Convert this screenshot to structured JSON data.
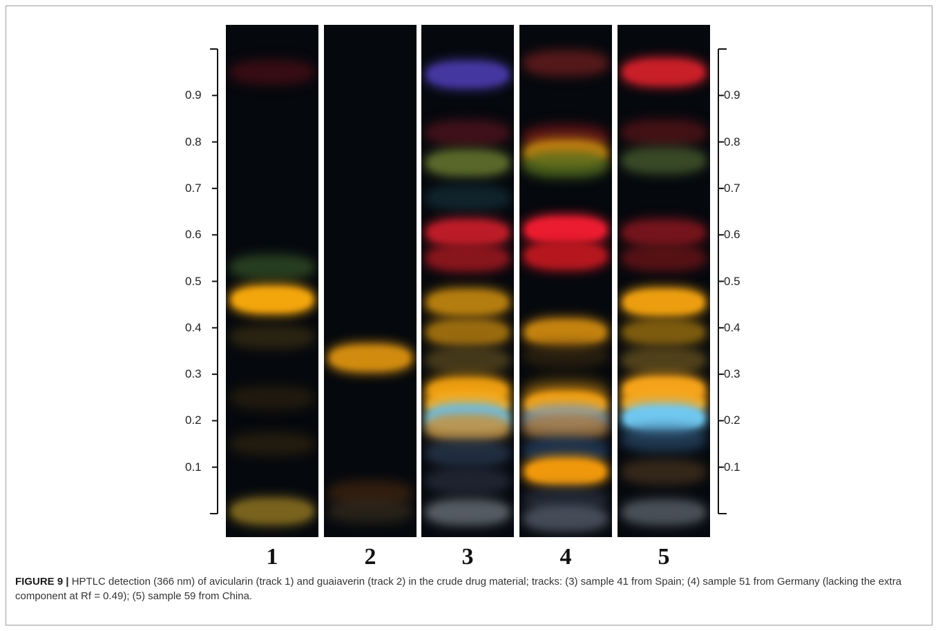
{
  "figure": {
    "y_axis_ticks": [
      "0.1",
      "0.2",
      "0.3",
      "0.4",
      "0.5",
      "0.6",
      "0.7",
      "0.8",
      "0.9"
    ],
    "tracks": [
      {
        "label": "1",
        "bands": [
          {
            "rf": 0.95,
            "color": "#5a1018",
            "intensity": 0.35
          },
          {
            "rf": 0.53,
            "color": "#3a5a2a",
            "intensity": 0.45
          },
          {
            "rf": 0.46,
            "color": "#f3a50c",
            "intensity": 1.0
          },
          {
            "rf": 0.38,
            "color": "#4a3a15",
            "intensity": 0.3
          },
          {
            "rf": 0.25,
            "color": "#3a2a10",
            "intensity": 0.25
          },
          {
            "rf": 0.15,
            "color": "#3a2a10",
            "intensity": 0.3
          },
          {
            "rf": 0.005,
            "color": "#8a7020",
            "intensity": 0.8
          }
        ]
      },
      {
        "label": "2",
        "bands": [
          {
            "rf": 0.335,
            "color": "#d89010",
            "intensity": 0.95
          },
          {
            "rf": 0.045,
            "color": "#4a2a10",
            "intensity": 0.4
          },
          {
            "rf": 0.005,
            "color": "#3a3020",
            "intensity": 0.4
          }
        ]
      },
      {
        "label": "3",
        "bands": [
          {
            "rf": 0.945,
            "color": "#4a3aaa",
            "intensity": 0.9
          },
          {
            "rf": 0.82,
            "color": "#5a1520",
            "intensity": 0.5
          },
          {
            "rf": 0.755,
            "color": "#6a7a30",
            "intensity": 0.75
          },
          {
            "rf": 0.68,
            "color": "#15303a",
            "intensity": 0.5
          },
          {
            "rf": 0.605,
            "color": "#c81e2a",
            "intensity": 0.9
          },
          {
            "rf": 0.55,
            "color": "#a01820",
            "intensity": 0.75
          },
          {
            "rf": 0.455,
            "color": "#c88a10",
            "intensity": 0.85
          },
          {
            "rf": 0.39,
            "color": "#b07a10",
            "intensity": 0.8
          },
          {
            "rf": 0.33,
            "color": "#5a4a20",
            "intensity": 0.6
          },
          {
            "rf": 0.265,
            "color": "#f0a010",
            "intensity": 0.95
          },
          {
            "rf": 0.235,
            "color": "#f7a81a",
            "intensity": 1.0
          },
          {
            "rf": 0.205,
            "color": "#66c0ec",
            "intensity": 1.0
          },
          {
            "rf": 0.185,
            "color": "#c8903a",
            "intensity": 0.75
          },
          {
            "rf": 0.13,
            "color": "#2a3a50",
            "intensity": 0.6
          },
          {
            "rf": 0.07,
            "color": "#2a3040",
            "intensity": 0.5
          },
          {
            "rf": 0.003,
            "color": "#707880",
            "intensity": 0.6
          }
        ]
      },
      {
        "label": "4",
        "bands": [
          {
            "rf": 0.97,
            "color": "#7a2020",
            "intensity": 0.5
          },
          {
            "rf": 0.81,
            "color": "#6a1518",
            "intensity": 0.6
          },
          {
            "rf": 0.775,
            "color": "#d08a10",
            "intensity": 0.85
          },
          {
            "rf": 0.75,
            "color": "#4a6a20",
            "intensity": 0.6
          },
          {
            "rf": 0.61,
            "color": "#ec1c30",
            "intensity": 1.0
          },
          {
            "rf": 0.555,
            "color": "#c01820",
            "intensity": 0.9
          },
          {
            "rf": 0.39,
            "color": "#d08a10",
            "intensity": 0.9
          },
          {
            "rf": 0.34,
            "color": "#3a2a10",
            "intensity": 0.4
          },
          {
            "rf": 0.265,
            "color": "#5a4010",
            "intensity": 0.6
          },
          {
            "rf": 0.235,
            "color": "#f4a010",
            "intensity": 1.0
          },
          {
            "rf": 0.205,
            "color": "#7aa0c0",
            "intensity": 0.7
          },
          {
            "rf": 0.185,
            "color": "#b07a3a",
            "intensity": 0.6
          },
          {
            "rf": 0.135,
            "color": "#203a5a",
            "intensity": 0.7
          },
          {
            "rf": 0.09,
            "color": "#f0980c",
            "intensity": 1.0
          },
          {
            "rf": 0.03,
            "color": "#2a3240",
            "intensity": 0.5
          },
          {
            "rf": -0.01,
            "color": "#5a6270",
            "intensity": 0.6
          }
        ]
      },
      {
        "label": "5",
        "bands": [
          {
            "rf": 0.95,
            "color": "#d0202a",
            "intensity": 0.95
          },
          {
            "rf": 0.82,
            "color": "#5a1518",
            "intensity": 0.55
          },
          {
            "rf": 0.76,
            "color": "#4a6030",
            "intensity": 0.6
          },
          {
            "rf": 0.605,
            "color": "#901820",
            "intensity": 0.7
          },
          {
            "rf": 0.55,
            "color": "#701518",
            "intensity": 0.6
          },
          {
            "rf": 0.455,
            "color": "#ec9e10",
            "intensity": 1.0
          },
          {
            "rf": 0.39,
            "color": "#9a7010",
            "intensity": 0.7
          },
          {
            "rf": 0.33,
            "color": "#6a5520",
            "intensity": 0.6
          },
          {
            "rf": 0.268,
            "color": "#f4a21a",
            "intensity": 1.0
          },
          {
            "rf": 0.238,
            "color": "#f6a61c",
            "intensity": 1.0
          },
          {
            "rf": 0.205,
            "color": "#70c8f0",
            "intensity": 1.0
          },
          {
            "rf": 0.16,
            "color": "#2a4a6a",
            "intensity": 0.5
          },
          {
            "rf": 0.09,
            "color": "#4a3520",
            "intensity": 0.5
          },
          {
            "rf": 0.003,
            "color": "#606870",
            "intensity": 0.6
          }
        ]
      }
    ]
  },
  "caption": {
    "label": "FIGURE 9 |",
    "text": " HPTLC detection (366 nm) of avicularin (track 1) and guaiaverin (track 2) in the crude drug material; tracks: (3) sample 41 from Spain; (4) sample 51 from Germany (lacking the extra component at Rf = 0.49); (5) sample 59 from China."
  }
}
